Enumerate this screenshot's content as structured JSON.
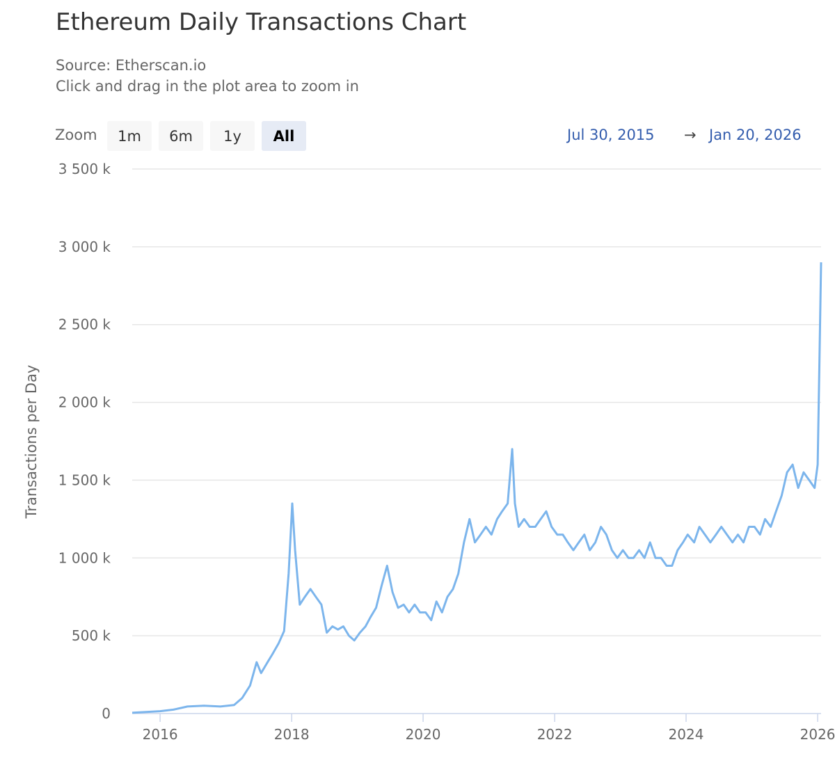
{
  "header": {
    "title": "Ethereum Daily Transactions Chart",
    "source": "Source: Etherscan.io",
    "hint": "Click and drag in the plot area to zoom in"
  },
  "zoom": {
    "label": "Zoom",
    "buttons": [
      "1m",
      "6m",
      "1y",
      "All"
    ],
    "active": "All"
  },
  "range": {
    "from": "Jul 30, 2015",
    "arrow": "→",
    "to": "Jan 20, 2026"
  },
  "colors": {
    "series": "#7cb5ec",
    "grid": "#e6e6e6",
    "axis_line": "#ccd6eb",
    "link": "#335cad"
  },
  "chart_data": {
    "type": "line",
    "title": "Ethereum Daily Transactions Chart",
    "ylabel": "Transactions per Day",
    "xlabel": "",
    "ylim": [
      0,
      3500000
    ],
    "xlim": [
      "2015-07-30",
      "2026-01-20"
    ],
    "grid": true,
    "legend": "none",
    "yticks": [
      0,
      500000,
      1000000,
      1500000,
      2000000,
      2500000,
      3000000,
      3500000
    ],
    "ytick_labels": [
      "0",
      "500 k",
      "1 000 k",
      "1 500 k",
      "2 000 k",
      "2 500 k",
      "3 000 k",
      "3 500 k"
    ],
    "xticks": [
      "2016-01-01",
      "2018-01-01",
      "2020-01-01",
      "2022-01-01",
      "2024-01-01",
      "2026-01-01"
    ],
    "xtick_labels": [
      "2016",
      "2018",
      "2020",
      "2022",
      "2024",
      "2026"
    ],
    "series": [
      {
        "x": [
          "2015-07-30",
          "2015-10-15",
          "2016-01-01",
          "2016-03-15",
          "2016-06-01",
          "2016-09-01",
          "2016-12-01",
          "2017-02-15",
          "2017-04-01",
          "2017-05-15",
          "2017-06-20",
          "2017-07-15",
          "2017-08-20",
          "2017-09-15",
          "2017-10-20",
          "2017-11-20",
          "2017-12-15",
          "2018-01-04",
          "2018-01-20",
          "2018-02-15",
          "2018-03-15",
          "2018-04-15",
          "2018-05-15",
          "2018-06-15",
          "2018-07-15",
          "2018-08-15",
          "2018-09-15",
          "2018-10-15",
          "2018-11-15",
          "2018-12-15",
          "2019-01-15",
          "2019-02-15",
          "2019-03-15",
          "2019-04-15",
          "2019-05-15",
          "2019-06-15",
          "2019-07-15",
          "2019-08-15",
          "2019-09-15",
          "2019-10-15",
          "2019-11-15",
          "2019-12-15",
          "2020-01-15",
          "2020-02-15",
          "2020-03-15",
          "2020-04-15",
          "2020-05-15",
          "2020-06-15",
          "2020-07-15",
          "2020-08-15",
          "2020-09-15",
          "2020-10-15",
          "2020-11-15",
          "2020-12-15",
          "2021-01-15",
          "2021-02-15",
          "2021-03-15",
          "2021-04-15",
          "2021-05-10",
          "2021-05-25",
          "2021-06-15",
          "2021-07-15",
          "2021-08-15",
          "2021-09-15",
          "2021-10-15",
          "2021-11-15",
          "2021-12-15",
          "2022-01-15",
          "2022-02-15",
          "2022-03-15",
          "2022-04-15",
          "2022-05-15",
          "2022-06-15",
          "2022-07-15",
          "2022-08-15",
          "2022-09-15",
          "2022-10-15",
          "2022-11-15",
          "2022-12-15",
          "2023-01-15",
          "2023-02-15",
          "2023-03-15",
          "2023-04-15",
          "2023-05-15",
          "2023-06-15",
          "2023-07-15",
          "2023-08-15",
          "2023-09-15",
          "2023-10-15",
          "2023-11-15",
          "2023-12-15",
          "2024-01-10",
          "2024-02-15",
          "2024-03-15",
          "2024-04-15",
          "2024-05-15",
          "2024-06-15",
          "2024-07-15",
          "2024-08-15",
          "2024-09-15",
          "2024-10-15",
          "2024-11-15",
          "2024-12-15",
          "2025-01-15",
          "2025-02-15",
          "2025-03-15",
          "2025-04-15",
          "2025-05-15",
          "2025-06-15",
          "2025-07-15",
          "2025-08-15",
          "2025-09-15",
          "2025-10-15",
          "2025-11-15",
          "2025-12-15",
          "2026-01-01",
          "2026-01-10",
          "2026-01-20"
        ],
        "values": [
          5000,
          10000,
          15000,
          25000,
          45000,
          50000,
          45000,
          55000,
          100000,
          180000,
          330000,
          260000,
          330000,
          380000,
          450000,
          530000,
          900000,
          1350000,
          1050000,
          700000,
          750000,
          800000,
          750000,
          700000,
          520000,
          560000,
          540000,
          560000,
          500000,
          470000,
          520000,
          560000,
          620000,
          680000,
          820000,
          950000,
          780000,
          680000,
          700000,
          650000,
          700000,
          650000,
          650000,
          600000,
          720000,
          650000,
          750000,
          800000,
          900000,
          1100000,
          1250000,
          1100000,
          1150000,
          1200000,
          1150000,
          1250000,
          1300000,
          1350000,
          1700000,
          1350000,
          1200000,
          1250000,
          1200000,
          1200000,
          1250000,
          1300000,
          1200000,
          1150000,
          1150000,
          1100000,
          1050000,
          1100000,
          1150000,
          1050000,
          1100000,
          1200000,
          1150000,
          1050000,
          1000000,
          1050000,
          1000000,
          1000000,
          1050000,
          1000000,
          1100000,
          1000000,
          1000000,
          950000,
          950000,
          1050000,
          1100000,
          1150000,
          1100000,
          1200000,
          1150000,
          1100000,
          1150000,
          1200000,
          1150000,
          1100000,
          1150000,
          1100000,
          1200000,
          1200000,
          1150000,
          1250000,
          1200000,
          1300000,
          1400000,
          1550000,
          1600000,
          1450000,
          1550000,
          1500000,
          1450000,
          1600000,
          2200000,
          2900000
        ]
      }
    ]
  }
}
